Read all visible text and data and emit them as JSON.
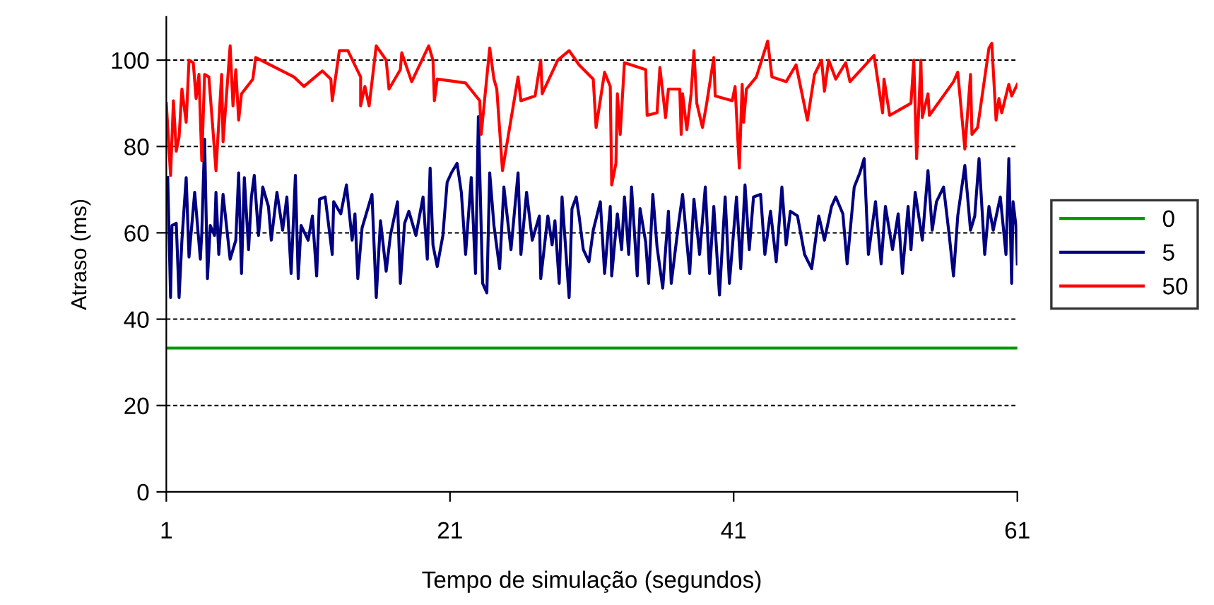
{
  "chart_data": {
    "type": "line",
    "xlabel": "Tempo de simulação (segundos)",
    "ylabel": "Atraso (ms)",
    "xlim": [
      1,
      61
    ],
    "xticks": [
      1,
      21,
      41,
      61
    ],
    "ylim": [
      0,
      110
    ],
    "yticks": [
      0,
      20,
      40,
      60,
      80,
      100
    ],
    "grid": "y",
    "legend": "right",
    "marker": "none",
    "line_style": "solid",
    "series": [
      {
        "name": "0",
        "color": "#009900",
        "x": [
          1,
          61
        ],
        "values": [
          33.3,
          33.3
        ]
      },
      {
        "name": "5",
        "color": "#000080",
        "x": [
          1.1,
          1.3,
          1.4,
          1.7,
          1.9,
          2.1,
          2.4,
          2.6,
          3.0,
          3.4,
          3.5,
          3.7,
          3.9,
          4.1,
          4.4,
          4.5,
          4.7,
          5.0,
          5.5,
          5.9,
          6.1,
          6.3,
          6.5,
          6.8,
          7.0,
          7.2,
          7.5,
          7.8,
          8.2,
          8.4,
          8.8,
          9.2,
          9.5,
          9.8,
          10.1,
          10.3,
          10.5,
          11.0,
          11.3,
          11.6,
          11.8,
          12.2,
          12.7,
          12.8,
          13.3,
          13.7,
          14.1,
          14.3,
          14.5,
          14.8,
          15.5,
          15.8,
          16.1,
          16.5,
          16.8,
          17.3,
          17.5,
          17.8,
          18.1,
          18.6,
          19.1,
          19.4,
          19.6,
          19.8,
          20.1,
          20.5,
          20.8,
          21.1,
          21.5,
          21.8,
          22.1,
          22.5,
          22.8,
          23.0,
          23.3,
          23.6,
          23.8,
          24.1,
          24.5,
          24.8,
          25.3,
          25.8,
          26.0,
          26.4,
          26.8,
          27.3,
          27.4,
          27.9,
          28.2,
          28.4,
          28.7,
          28.9,
          29.4,
          29.6,
          29.9,
          30.1,
          30.4,
          30.8,
          31.1,
          31.6,
          31.9,
          32.3,
          32.4,
          32.8,
          33.1,
          33.3,
          33.6,
          33.8,
          34.2,
          34.4,
          34.8,
          35.0,
          35.3,
          35.6,
          36.0,
          36.4,
          36.6,
          37.1,
          37.4,
          37.9,
          38.2,
          38.6,
          39.0,
          39.3,
          39.6,
          40.0,
          40.4,
          40.7,
          41.2,
          41.5,
          41.8,
          42.1,
          42.4,
          42.9,
          43.2,
          43.6,
          44.0,
          44.4,
          44.7,
          45.0,
          45.5,
          46.0,
          46.5,
          47.0,
          47.4,
          47.9,
          48.2,
          48.7,
          49.0,
          49.5,
          49.9,
          50.2,
          50.5,
          51.0,
          51.4,
          51.7,
          52.2,
          52.6,
          52.9,
          53.3,
          53.5,
          53.8,
          54.3,
          54.7,
          55.0,
          55.3,
          55.8,
          56.2,
          56.5,
          56.8,
          57.3,
          57.7,
          58.0,
          58.3,
          58.7,
          59.0,
          59.3,
          59.8,
          60.2,
          60.4,
          60.6,
          60.7,
          60.9,
          61.0
        ],
        "values": [
          72.8,
          45.0,
          61.7,
          62.2,
          45.0,
          58.3,
          72.8,
          54.4,
          69.4,
          53.9,
          60.0,
          81.7,
          49.4,
          61.7,
          59.4,
          69.4,
          55.0,
          68.9,
          53.9,
          58.3,
          73.9,
          50.6,
          72.8,
          56.1,
          68.3,
          73.3,
          59.4,
          70.6,
          66.1,
          58.3,
          69.4,
          60.6,
          68.3,
          50.6,
          73.3,
          49.4,
          61.7,
          58.3,
          63.9,
          50.0,
          67.8,
          68.3,
          55.0,
          67.2,
          64.4,
          71.1,
          58.3,
          64.4,
          49.4,
          61.1,
          68.9,
          45.0,
          62.8,
          51.1,
          59.4,
          67.2,
          48.3,
          62.2,
          65.0,
          59.4,
          68.3,
          53.9,
          75.0,
          57.2,
          52.2,
          59.4,
          71.7,
          73.9,
          76.1,
          69.4,
          55.0,
          72.8,
          50.6,
          86.9,
          48.3,
          46.1,
          73.9,
          61.7,
          51.7,
          70.6,
          56.1,
          73.9,
          55.0,
          69.4,
          58.3,
          63.9,
          49.4,
          63.9,
          57.2,
          62.8,
          48.3,
          68.3,
          45.0,
          65.6,
          68.3,
          63.9,
          56.1,
          53.3,
          60.6,
          67.2,
          50.6,
          66.1,
          50.0,
          64.4,
          56.1,
          68.3,
          55.0,
          70.6,
          50.0,
          65.6,
          57.8,
          48.3,
          68.9,
          56.7,
          47.2,
          65.0,
          48.3,
          61.7,
          68.9,
          50.6,
          67.8,
          55.0,
          70.6,
          50.6,
          66.1,
          45.6,
          68.3,
          48.3,
          68.3,
          51.7,
          71.1,
          56.1,
          68.3,
          68.9,
          55.0,
          65.0,
          53.3,
          70.6,
          57.2,
          65.0,
          63.9,
          55.0,
          51.7,
          63.9,
          58.3,
          66.1,
          68.3,
          64.4,
          52.8,
          70.6,
          73.9,
          77.2,
          55.0,
          67.2,
          52.8,
          66.1,
          56.1,
          64.4,
          50.6,
          66.1,
          56.1,
          69.4,
          58.3,
          74.4,
          60.6,
          67.2,
          70.6,
          59.4,
          50.0,
          63.9,
          75.6,
          60.6,
          63.9,
          77.2,
          55.0,
          66.1,
          60.6,
          68.3,
          55.0,
          77.2,
          48.3,
          67.2,
          61.7,
          52.8
        ]
      },
      {
        "name": "50",
        "color": "#ff0000",
        "x": [
          1.0,
          1.3,
          1.5,
          1.7,
          1.9,
          2.1,
          2.4,
          2.6,
          2.9,
          3.1,
          3.3,
          3.5,
          3.7,
          4.0,
          4.3,
          4.5,
          4.9,
          5.0,
          5.5,
          5.7,
          5.9,
          6.1,
          6.3,
          7.1,
          7.3,
          10.0,
          10.7,
          12.0,
          12.6,
          12.7,
          13.2,
          13.8,
          14.7,
          14.7,
          15.0,
          15.3,
          15.8,
          16.5,
          16.7,
          17.5,
          17.6,
          18.3,
          19.5,
          19.8,
          19.9,
          20.1,
          22.1,
          23.1,
          23.2,
          23.8,
          24.1,
          24.3,
          24.7,
          25.8,
          26.0,
          27.0,
          27.4,
          27.5,
          28.6,
          29.4,
          30.1,
          31.1,
          31.3,
          31.9,
          32.3,
          32.4,
          32.7,
          32.8,
          33.0,
          33.3,
          34.8,
          34.9,
          35.6,
          35.8,
          36.2,
          36.4,
          37.2,
          37.3,
          37.4,
          37.7,
          38.0,
          38.2,
          38.4,
          38.8,
          39.1,
          39.6,
          39.7,
          40.9,
          41.1,
          41.4,
          41.6,
          41.7,
          41.9,
          42.6,
          43.4,
          43.7,
          44.7,
          45.4,
          46.2,
          46.7,
          47.2,
          47.4,
          47.7,
          48.2,
          48.9,
          49.2,
          50.9,
          51.5,
          51.6,
          52.0,
          53.5,
          53.7,
          53.9,
          54.2,
          54.3,
          54.7,
          54.8,
          56.5,
          56.8,
          57.3,
          57.7,
          57.8,
          58.2,
          59.0,
          59.2,
          59.5,
          59.7,
          59.9,
          60.4,
          60.6,
          61.0
        ],
        "values": [
          90.0,
          73.3,
          90.6,
          78.9,
          82.2,
          93.3,
          85.6,
          100.0,
          99.4,
          91.1,
          96.7,
          76.7,
          96.7,
          96.1,
          83.3,
          74.4,
          96.7,
          81.1,
          103.3,
          89.4,
          97.8,
          86.1,
          92.2,
          95.6,
          100.6,
          96.1,
          93.9,
          97.5,
          95.6,
          90.6,
          102.2,
          102.2,
          96.1,
          89.4,
          93.9,
          89.4,
          103.3,
          100.0,
          93.3,
          97.8,
          101.7,
          95.0,
          103.3,
          100.0,
          90.6,
          95.6,
          94.7,
          90.6,
          82.8,
          102.8,
          95.6,
          93.3,
          74.4,
          96.1,
          90.6,
          91.7,
          100.0,
          92.2,
          100.0,
          102.2,
          98.9,
          95.6,
          84.4,
          97.2,
          93.9,
          71.1,
          76.1,
          92.2,
          82.8,
          99.4,
          97.8,
          87.2,
          87.8,
          98.3,
          86.7,
          93.3,
          93.3,
          82.8,
          92.2,
          83.9,
          92.2,
          102.2,
          90.0,
          84.4,
          90.0,
          100.6,
          91.7,
          90.6,
          93.9,
          75.0,
          94.4,
          85.6,
          93.3,
          96.1,
          104.4,
          96.1,
          95.0,
          98.9,
          86.1,
          96.7,
          100.0,
          92.8,
          100.0,
          95.6,
          99.4,
          95.0,
          101.1,
          87.8,
          95.6,
          87.2,
          90.0,
          100.0,
          77.2,
          100.0,
          86.7,
          92.2,
          87.2,
          95.0,
          97.2,
          79.4,
          96.7,
          82.8,
          84.4,
          102.8,
          103.9,
          86.1,
          91.1,
          87.8,
          94.4,
          91.7,
          94.4
        ]
      }
    ]
  }
}
